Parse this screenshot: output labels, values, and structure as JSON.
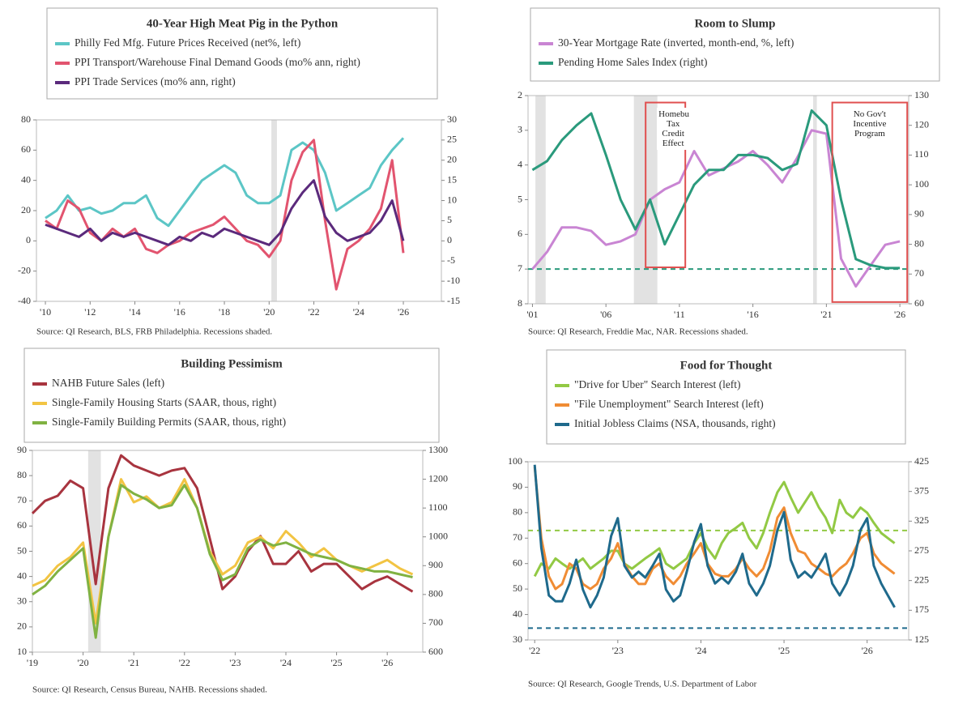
{
  "chart_data": [
    {
      "type": "line",
      "title": "40-Year High Meat Pig in the Python",
      "source": "Source: QI Research, BLS, FRB Philadelphia. Recessions shaded.",
      "x": [
        2010,
        2010.5,
        2011,
        2011.5,
        2012,
        2012.5,
        2013,
        2013.5,
        2014,
        2014.5,
        2015,
        2015.5,
        2016,
        2016.5,
        2017,
        2017.5,
        2018,
        2018.5,
        2019,
        2019.5,
        2020,
        2020.5,
        2021,
        2021.5,
        2022,
        2022.5,
        2023,
        2023.5,
        2024,
        2024.5,
        2025,
        2025.5,
        2026
      ],
      "series": [
        {
          "name": "Philly Fed Mfg. Future Prices Received (net%, left)",
          "color": "#5cc6c6",
          "values": [
            15,
            20,
            30,
            20,
            22,
            18,
            20,
            25,
            25,
            30,
            15,
            10,
            20,
            30,
            40,
            45,
            50,
            45,
            30,
            25,
            25,
            30,
            60,
            65,
            60,
            45,
            20,
            25,
            30,
            35,
            50,
            60,
            68
          ]
        },
        {
          "name": "PPI Transport/Warehouse Final Demand Goods (mo% ann, right)",
          "color": "#e2546f",
          "axis": "y2",
          "values": [
            5,
            3,
            10,
            8,
            2,
            0,
            3,
            1,
            3,
            -2,
            -3,
            -1,
            0,
            2,
            3,
            4,
            6,
            3,
            0,
            -1,
            -4,
            0,
            15,
            22,
            25,
            5,
            -12,
            -2,
            0,
            3,
            8,
            20,
            -3
          ]
        },
        {
          "name": "PPI Trade Services (mo% ann, right)",
          "color": "#5b2a7c",
          "axis": "y2",
          "values": [
            4,
            3,
            2,
            1,
            3,
            0,
            2,
            1,
            2,
            1,
            0,
            -1,
            1,
            0,
            2,
            1,
            3,
            2,
            1,
            0,
            -1,
            2,
            8,
            12,
            15,
            6,
            2,
            0,
            1,
            2,
            5,
            10,
            0
          ]
        }
      ],
      "xlim": [
        2009.6,
        2027.7
      ],
      "xticks": [
        {
          "value": 2010,
          "label": "'10"
        },
        {
          "value": 2012,
          "label": "'12"
        },
        {
          "value": 2014,
          "label": "'14"
        },
        {
          "value": 2016,
          "label": "'16"
        },
        {
          "value": 2018,
          "label": "'18"
        },
        {
          "value": 2020,
          "label": "'20"
        },
        {
          "value": 2022,
          "label": "'22"
        },
        {
          "value": 2024,
          "label": "'24"
        },
        {
          "value": 2026,
          "label": "'26"
        }
      ],
      "ylim": [
        -40,
        80
      ],
      "yticks": [
        80,
        60,
        40,
        20,
        0,
        -20,
        -40
      ],
      "y2lim": [
        -15,
        30
      ],
      "y2ticks": [
        30,
        25,
        20,
        15,
        10,
        5,
        0,
        -5,
        -10,
        -15
      ],
      "shaded_periods": [
        [
          2020.1,
          2020.35
        ]
      ]
    },
    {
      "type": "line",
      "title": "Room to Slump",
      "source": "Source: QI Research, Freddie Mac, NAR. Recessions shaded.",
      "x": [
        2001,
        2002,
        2003,
        2004,
        2005,
        2006,
        2007,
        2008,
        2009,
        2010,
        2011,
        2012,
        2013,
        2014,
        2015,
        2016,
        2017,
        2018,
        2019,
        2020,
        2021,
        2022,
        2023,
        2024,
        2025,
        2026
      ],
      "series": [
        {
          "name": "30-Year Mortgage Rate (inverted, month-end, %, left)",
          "color": "#c985d3",
          "values": [
            7.0,
            6.5,
            5.8,
            5.8,
            5.9,
            6.3,
            6.2,
            6.0,
            5.0,
            4.7,
            4.5,
            3.6,
            4.3,
            4.1,
            3.9,
            3.6,
            4.0,
            4.5,
            3.8,
            3.0,
            3.1,
            6.7,
            7.5,
            6.9,
            6.3,
            6.2
          ]
        },
        {
          "name": "Pending Home Sales Index (right)",
          "color": "#2a9a7c",
          "axis": "y2",
          "values": [
            105,
            108,
            115,
            120,
            124,
            110,
            95,
            85,
            95,
            80,
            90,
            100,
            105,
            105,
            110,
            110,
            109,
            105,
            107,
            125,
            120,
            95,
            75,
            73,
            72,
            72
          ]
        }
      ],
      "xlim": [
        2000.7,
        2026.6
      ],
      "xticks": [
        {
          "value": 2001,
          "label": "'01"
        },
        {
          "value": 2006,
          "label": "'06"
        },
        {
          "value": 2011,
          "label": "'11"
        },
        {
          "value": 2016,
          "label": "'16"
        },
        {
          "value": 2021,
          "label": "'21"
        },
        {
          "value": 2026,
          "label": "'26"
        }
      ],
      "ylim": [
        2,
        8
      ],
      "y_inverted": true,
      "yticks": [
        2,
        3,
        4,
        5,
        6,
        7,
        8
      ],
      "y2lim": [
        60,
        130
      ],
      "y2ticks": [
        130,
        120,
        110,
        100,
        90,
        80,
        70,
        60
      ],
      "shaded_periods": [
        [
          2001.2,
          2001.9
        ],
        [
          2007.9,
          2009.5
        ],
        [
          2020.1,
          2020.35
        ]
      ],
      "reference_lines": [
        {
          "value": 7,
          "axis": "y",
          "color": "#2a9a7c"
        }
      ],
      "annotations": [
        {
          "text": "Homebuyer Tax Credit Effect",
          "x0": 2008.7,
          "x1": 2011.4,
          "y0": 2.2,
          "y1": 6.95,
          "color": "#e05050"
        },
        {
          "text": "No Gov't Incentive Program",
          "x0": 2021.4,
          "x1": 2026.5,
          "y0": 2.2,
          "y1": 7.95,
          "color": "#e05050"
        }
      ]
    },
    {
      "type": "line",
      "title": "Building Pessimism",
      "source": "Source: QI Research, Census Bureau, NAHB. Recessions shaded.",
      "x": [
        2019,
        2019.25,
        2019.5,
        2019.75,
        2020,
        2020.25,
        2020.5,
        2020.75,
        2021,
        2021.25,
        2021.5,
        2021.75,
        2022,
        2022.25,
        2022.5,
        2022.75,
        2023,
        2023.25,
        2023.5,
        2023.75,
        2024,
        2024.25,
        2024.5,
        2024.75,
        2025,
        2025.25,
        2025.5,
        2025.75,
        2026,
        2026.25,
        2026.5
      ],
      "series": [
        {
          "name": "NAHB Future Sales (left)",
          "color": "#a8343f",
          "values": [
            65,
            70,
            72,
            78,
            75,
            37,
            75,
            88,
            84,
            82,
            80,
            82,
            83,
            75,
            55,
            35,
            40,
            50,
            56,
            45,
            45,
            50,
            42,
            45,
            45,
            40,
            35,
            38,
            40,
            37,
            34
          ]
        },
        {
          "name": "Single-Family Housing Starts (SAAR, thous, right)",
          "color": "#f2c443",
          "axis": "y2",
          "values": [
            830,
            850,
            900,
            930,
            980,
            700,
            1000,
            1200,
            1120,
            1140,
            1100,
            1120,
            1200,
            1100,
            950,
            870,
            900,
            980,
            1000,
            960,
            1020,
            980,
            930,
            960,
            920,
            900,
            880,
            900,
            920,
            890,
            870
          ]
        },
        {
          "name": "Single-Family Building Permits (SAAR, thous, right)",
          "color": "#80b242",
          "axis": "y2",
          "values": [
            800,
            830,
            880,
            920,
            960,
            650,
            1000,
            1180,
            1150,
            1130,
            1100,
            1110,
            1180,
            1100,
            940,
            850,
            870,
            960,
            990,
            970,
            980,
            960,
            940,
            930,
            920,
            900,
            890,
            880,
            880,
            870,
            860
          ]
        }
      ],
      "xlim": [
        2019,
        2026.7
      ],
      "xticks": [
        {
          "value": 2019,
          "label": "'19"
        },
        {
          "value": 2020,
          "label": "'20"
        },
        {
          "value": 2021,
          "label": "'21"
        },
        {
          "value": 2022,
          "label": "'22"
        },
        {
          "value": 2023,
          "label": "'23"
        },
        {
          "value": 2024,
          "label": "'24"
        },
        {
          "value": 2025,
          "label": "'25"
        },
        {
          "value": 2026,
          "label": "'26"
        }
      ],
      "ylim": [
        10,
        90
      ],
      "yticks": [
        90,
        80,
        70,
        60,
        50,
        40,
        30,
        20,
        10
      ],
      "y2lim": [
        600,
        1300
      ],
      "y2ticks": [
        1300,
        1200,
        1100,
        1000,
        900,
        800,
        700,
        600
      ],
      "shaded_periods": [
        [
          2020.1,
          2020.35
        ]
      ]
    },
    {
      "type": "line",
      "title": "Food for Thought",
      "source": "Source: QI Research, Google Trends, U.S. Department of Labor",
      "x": [
        2022,
        2022.08,
        2022.17,
        2022.25,
        2022.33,
        2022.42,
        2022.5,
        2022.58,
        2022.67,
        2022.75,
        2022.83,
        2022.92,
        2023,
        2023.08,
        2023.17,
        2023.25,
        2023.33,
        2023.42,
        2023.5,
        2023.58,
        2023.67,
        2023.75,
        2023.83,
        2023.92,
        2024,
        2024.08,
        2024.17,
        2024.25,
        2024.33,
        2024.42,
        2024.5,
        2024.58,
        2024.67,
        2024.75,
        2024.83,
        2024.92,
        2025,
        2025.08,
        2025.17,
        2025.25,
        2025.33,
        2025.42,
        2025.5,
        2025.58,
        2025.67,
        2025.75,
        2025.83,
        2025.92,
        2026,
        2026.08,
        2026.17,
        2026.25,
        2026.33
      ],
      "series": [
        {
          "name": "\"Drive for Uber\" Search Interest (left)",
          "color": "#92c944",
          "values": [
            55,
            60,
            58,
            62,
            60,
            58,
            60,
            62,
            58,
            60,
            62,
            65,
            65,
            60,
            58,
            60,
            62,
            64,
            66,
            60,
            58,
            60,
            62,
            68,
            72,
            66,
            62,
            68,
            72,
            74,
            76,
            70,
            66,
            72,
            80,
            88,
            92,
            86,
            80,
            84,
            88,
            82,
            78,
            72,
            85,
            80,
            78,
            82,
            80,
            76,
            72,
            70,
            68
          ]
        },
        {
          "name": "\"File Unemployment\" Search Interest (left)",
          "color": "#f08c34",
          "values": [
            98,
            70,
            55,
            50,
            52,
            60,
            58,
            52,
            50,
            52,
            58,
            62,
            68,
            60,
            55,
            52,
            52,
            58,
            60,
            55,
            52,
            55,
            60,
            64,
            68,
            60,
            56,
            55,
            55,
            58,
            62,
            58,
            55,
            58,
            65,
            78,
            82,
            72,
            65,
            64,
            60,
            58,
            56,
            55,
            58,
            60,
            64,
            70,
            72,
            64,
            60,
            58,
            56
          ]
        },
        {
          "name": "Initial Jobless Claims (NSA, thousands, right)",
          "color": "#1f6a8c",
          "axis": "y2",
          "values": [
            420,
            280,
            200,
            190,
            190,
            220,
            260,
            210,
            180,
            200,
            230,
            300,
            330,
            250,
            230,
            240,
            230,
            250,
            270,
            210,
            190,
            200,
            240,
            290,
            320,
            250,
            220,
            230,
            220,
            240,
            270,
            220,
            200,
            220,
            250,
            310,
            340,
            260,
            230,
            240,
            230,
            250,
            270,
            220,
            200,
            220,
            250,
            310,
            330,
            250,
            220,
            200,
            180
          ]
        }
      ],
      "xlim": [
        2021.92,
        2026.5
      ],
      "xticks": [
        {
          "value": 2022,
          "label": "'22"
        },
        {
          "value": 2023,
          "label": "'23"
        },
        {
          "value": 2024,
          "label": "'24"
        },
        {
          "value": 2025,
          "label": "'25"
        },
        {
          "value": 2026,
          "label": "'26"
        }
      ],
      "ylim": [
        30,
        100
      ],
      "yticks": [
        100,
        90,
        80,
        70,
        60,
        50,
        40,
        30
      ],
      "y2lim": [
        125,
        425
      ],
      "y2ticks": [
        425,
        375,
        325,
        275,
        225,
        175,
        125
      ],
      "reference_lines": [
        {
          "value": 73,
          "axis": "y",
          "color": "#92c944"
        },
        {
          "value": 145,
          "axis": "y2",
          "color": "#1f6a8c"
        }
      ]
    }
  ]
}
